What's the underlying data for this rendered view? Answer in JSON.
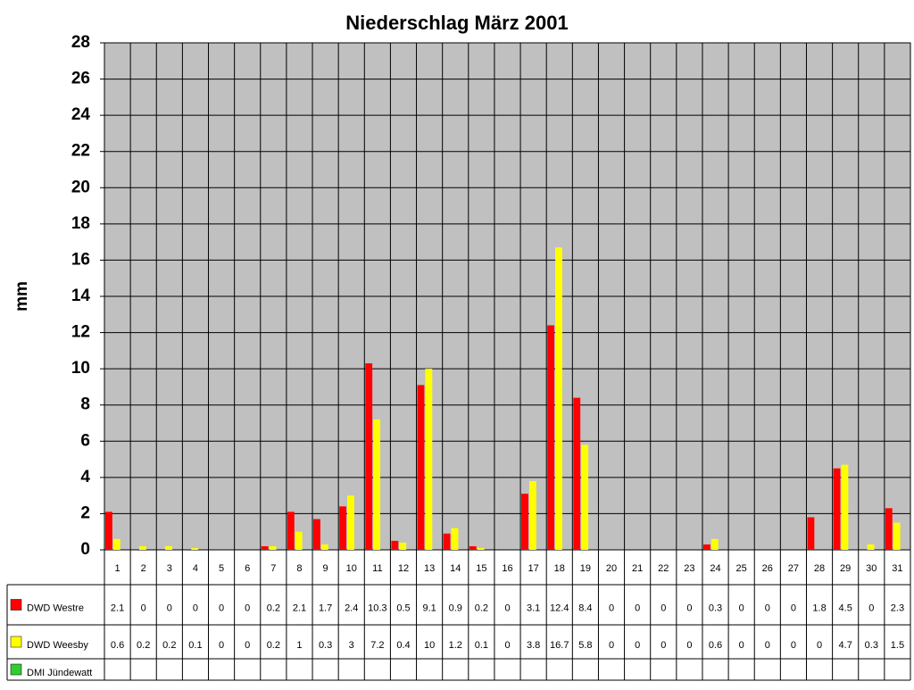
{
  "chart_data": {
    "type": "bar",
    "title": "Niederschlag März 2001",
    "y_label": "mm",
    "categories": [
      "1",
      "2",
      "3",
      "4",
      "5",
      "6",
      "7",
      "8",
      "9",
      "10",
      "11",
      "12",
      "13",
      "14",
      "15",
      "16",
      "17",
      "18",
      "19",
      "20",
      "21",
      "22",
      "23",
      "24",
      "25",
      "26",
      "27",
      "28",
      "29",
      "30",
      "31"
    ],
    "series": [
      {
        "name": "DWD Westre",
        "color": "#ff0000",
        "values": [
          2.1,
          0,
          0,
          0,
          0,
          0,
          0.2,
          2.1,
          1.7,
          2.4,
          10.3,
          0.5,
          9.1,
          0.9,
          0.2,
          0,
          3.1,
          12.4,
          8.4,
          0,
          0,
          0,
          0,
          0.3,
          0,
          0,
          0,
          1.8,
          4.5,
          0,
          2.3
        ]
      },
      {
        "name": "DWD Weesby",
        "color": "#ffff00",
        "values": [
          0.6,
          0.2,
          0.2,
          0.1,
          0,
          0,
          0.2,
          1,
          0.3,
          3,
          7.2,
          0.4,
          10,
          1.2,
          0.1,
          0,
          3.8,
          16.7,
          5.8,
          0,
          0,
          0,
          0,
          0.6,
          0,
          0,
          0,
          0,
          4.7,
          0.3,
          1.5
        ]
      },
      {
        "name": "DMI Jündewatt",
        "color": "#33cc33",
        "values": [
          null,
          null,
          null,
          null,
          null,
          null,
          null,
          null,
          null,
          null,
          null,
          null,
          null,
          null,
          null,
          null,
          null,
          null,
          null,
          null,
          null,
          null,
          null,
          null,
          null,
          null,
          null,
          null,
          null,
          null,
          null
        ]
      }
    ],
    "ylim": [
      0,
      28
    ],
    "yticks": [
      0,
      2,
      4,
      6,
      8,
      10,
      12,
      14,
      16,
      18,
      20,
      22,
      24,
      26,
      28
    ],
    "grid": true,
    "plot_background": "#c0c0c0"
  }
}
